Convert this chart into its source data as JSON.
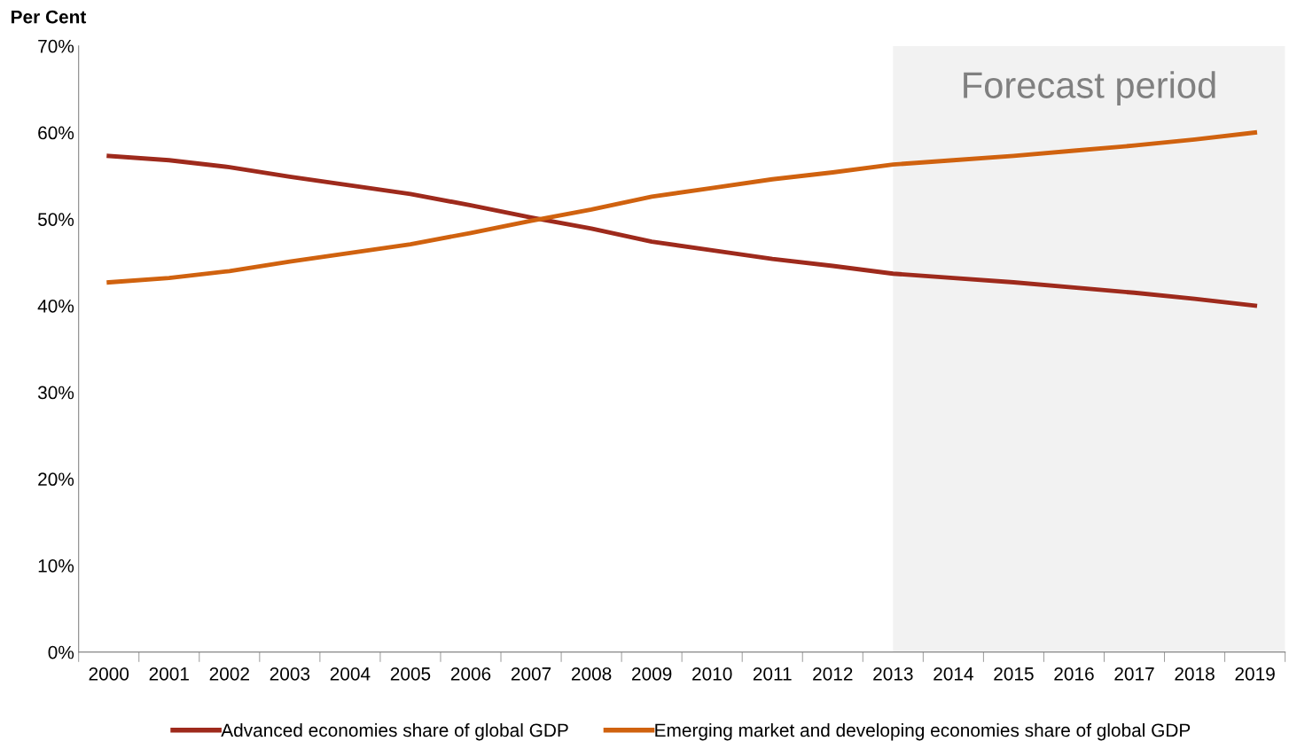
{
  "chart_data": {
    "type": "line",
    "ylabel": "Per Cent",
    "categories": [
      "2000",
      "2001",
      "2002",
      "2003",
      "2004",
      "2005",
      "2006",
      "2007",
      "2008",
      "2009",
      "2010",
      "2011",
      "2012",
      "2013",
      "2014",
      "2015",
      "2016",
      "2017",
      "2018",
      "2019"
    ],
    "series": [
      {
        "name": "Advanced economies share of global GDP",
        "color": "#9e2a1c",
        "values": [
          57.3,
          56.8,
          56.0,
          54.9,
          53.9,
          52.9,
          51.6,
          50.2,
          48.9,
          47.4,
          46.4,
          45.4,
          44.6,
          43.7,
          43.2,
          42.7,
          42.1,
          41.5,
          40.8,
          40.0
        ]
      },
      {
        "name": "Emerging market and developing economies share of global GDP",
        "color": "#d0620f",
        "values": [
          42.7,
          43.2,
          44.0,
          45.1,
          46.1,
          47.1,
          48.4,
          49.8,
          51.1,
          52.6,
          53.6,
          54.6,
          55.4,
          56.3,
          56.8,
          57.3,
          57.9,
          58.5,
          59.2,
          60.0
        ]
      }
    ],
    "ylim": [
      0,
      70
    ],
    "yticks": [
      {
        "value": 0,
        "label": "0%"
      },
      {
        "value": 10,
        "label": "10%"
      },
      {
        "value": 20,
        "label": "20%"
      },
      {
        "value": 30,
        "label": "30%"
      },
      {
        "value": 40,
        "label": "40%"
      },
      {
        "value": 50,
        "label": "50%"
      },
      {
        "value": 60,
        "label": "60%"
      },
      {
        "value": 70,
        "label": "70%"
      }
    ],
    "bands": [
      {
        "axis": "x",
        "from": "2013",
        "to": "2019",
        "label": "Forecast period",
        "color": "#f2f2f2"
      }
    ],
    "grid": false,
    "legend": "bottom",
    "marker": "none",
    "line_style": "solid"
  }
}
